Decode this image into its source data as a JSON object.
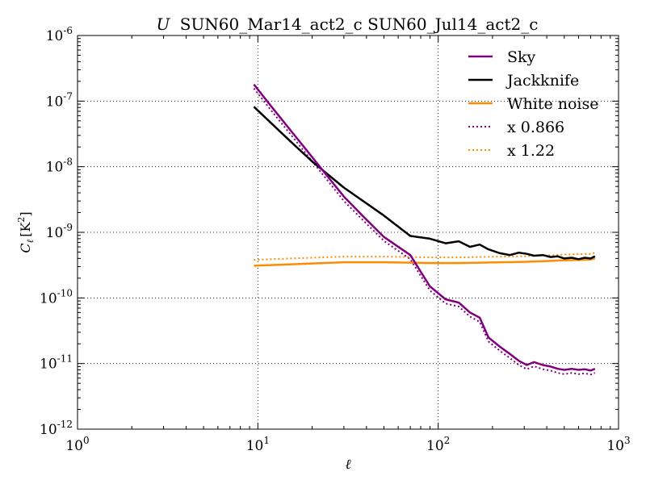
{
  "chart_data": {
    "type": "line",
    "title": "U SUN60_Mar14_act2_c SUN60_Jul14_act2_c",
    "title_italic_prefix": "U",
    "title_rest": "SUN60_Mar14_act2_c SUN60_Jul14_act2_c",
    "xlabel": "ℓ",
    "ylabel": "C_ℓ [K²]",
    "ylabel_parts": {
      "main": "C",
      "sub": "ℓ",
      "bracket_open": "[K",
      "sup": "2",
      "bracket_close": "]"
    },
    "x_scale": "log",
    "y_scale": "log",
    "xlim": [
      1,
      1000
    ],
    "ylim": [
      1e-12,
      1e-06
    ],
    "grid": true,
    "legend_position": "top-right",
    "x_ticks": [
      {
        "value": 1,
        "base": "10",
        "exp": "0"
      },
      {
        "value": 10,
        "base": "10",
        "exp": "1"
      },
      {
        "value": 100,
        "base": "10",
        "exp": "2"
      },
      {
        "value": 1000,
        "base": "10",
        "exp": "3"
      }
    ],
    "y_ticks": [
      {
        "value": 1e-12,
        "base": "10",
        "exp": "-12"
      },
      {
        "value": 1e-11,
        "base": "10",
        "exp": "-11"
      },
      {
        "value": 1e-10,
        "base": "10",
        "exp": "-10"
      },
      {
        "value": 1e-09,
        "base": "10",
        "exp": "-9"
      },
      {
        "value": 1e-08,
        "base": "10",
        "exp": "-8"
      },
      {
        "value": 1e-07,
        "base": "10",
        "exp": "-7"
      },
      {
        "value": 1e-06,
        "base": "10",
        "exp": "-6"
      }
    ],
    "series": [
      {
        "name": "Sky",
        "color": "#800080",
        "style": "solid",
        "x": [
          9.5,
          12,
          16,
          20,
          24,
          30,
          38,
          50,
          70,
          90,
          110,
          130,
          150,
          170,
          190,
          220,
          250,
          280,
          310,
          340,
          380,
          420,
          460,
          500,
          550,
          600,
          650,
          700,
          740
        ],
        "y": [
          1.8e-07,
          8e-08,
          3e-08,
          1.4e-08,
          7.5e-09,
          3.5e-09,
          1.8e-09,
          8.5e-10,
          4.5e-10,
          1.5e-10,
          9.5e-11,
          8.5e-11,
          6e-11,
          5e-11,
          2.5e-11,
          1.8e-11,
          1.4e-11,
          1.1e-11,
          9.5e-12,
          1.05e-11,
          9.5e-12,
          9e-12,
          8.3e-12,
          8e-12,
          8.3e-12,
          8e-12,
          8.2e-12,
          7.8e-12,
          8.3e-12
        ]
      },
      {
        "name": "Jackknife",
        "color": "#000000",
        "style": "solid",
        "x": [
          9.5,
          15,
          20,
          30,
          50,
          70,
          90,
          110,
          130,
          150,
          170,
          190,
          220,
          250,
          280,
          310,
          340,
          380,
          420,
          460,
          500,
          550,
          600,
          650,
          700,
          740
        ],
        "y": [
          8.2e-08,
          2.5e-08,
          1.2e-08,
          4.8e-09,
          1.8e-09,
          8.8e-10,
          8e-10,
          6.8e-10,
          7.3e-10,
          6e-10,
          6.5e-10,
          5.5e-10,
          4.8e-10,
          4.5e-10,
          4.9e-10,
          4.7e-10,
          4.4e-10,
          4.5e-10,
          4.2e-10,
          4.3e-10,
          4e-10,
          4.1e-10,
          3.9e-10,
          4.1e-10,
          4e-10,
          4.3e-10
        ]
      },
      {
        "name": "White noise",
        "color": "#ff8c00",
        "style": "solid",
        "x": [
          9.5,
          15,
          20,
          30,
          50,
          70,
          90,
          130,
          170,
          220,
          300,
          400,
          500,
          600,
          700,
          740
        ],
        "y": [
          3.1e-10,
          3.25e-10,
          3.35e-10,
          3.5e-10,
          3.5e-10,
          3.45e-10,
          3.4e-10,
          3.4e-10,
          3.45e-10,
          3.5e-10,
          3.55e-10,
          3.65e-10,
          3.75e-10,
          3.8e-10,
          3.85e-10,
          4e-10
        ]
      },
      {
        "name": "x 0.866",
        "color": "#800080",
        "style": "dotted",
        "x": [
          9.5,
          12,
          16,
          20,
          24,
          30,
          38,
          50,
          70,
          90,
          110,
          130,
          150,
          170,
          190,
          220,
          250,
          280,
          310,
          340,
          380,
          420,
          460,
          500,
          550,
          600,
          650,
          700,
          740
        ],
        "y": [
          1.56e-07,
          6.9e-08,
          2.6e-08,
          1.21e-08,
          6.5e-09,
          3e-09,
          1.56e-09,
          7.4e-10,
          3.9e-10,
          1.3e-10,
          8.2e-11,
          7.4e-11,
          5.2e-11,
          4.3e-11,
          2.17e-11,
          1.56e-11,
          1.21e-11,
          9.5e-12,
          8.2e-12,
          9.1e-12,
          8.2e-12,
          7.8e-12,
          7.2e-12,
          6.9e-12,
          7.2e-12,
          6.9e-12,
          7.1e-12,
          6.8e-12,
          7.2e-12
        ]
      },
      {
        "name": "x 1.22",
        "color": "#ff8c00",
        "style": "dotted",
        "x": [
          9.5,
          15,
          20,
          30,
          50,
          70,
          90,
          130,
          170,
          220,
          300,
          400,
          500,
          600,
          700,
          740
        ],
        "y": [
          3.8e-10,
          4e-10,
          4.1e-10,
          4.27e-10,
          4.27e-10,
          4.2e-10,
          4.15e-10,
          4.15e-10,
          4.2e-10,
          4.27e-10,
          4.33e-10,
          4.45e-10,
          4.58e-10,
          4.64e-10,
          4.7e-10,
          4.88e-10
        ]
      }
    ]
  }
}
